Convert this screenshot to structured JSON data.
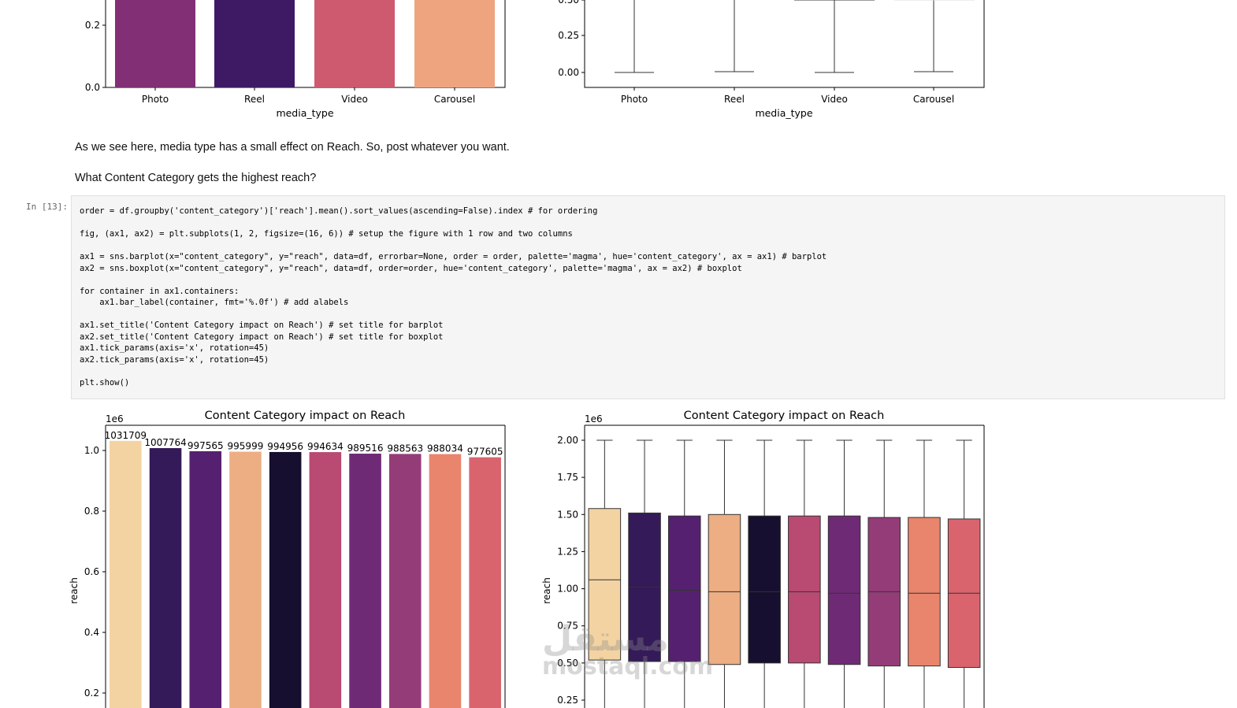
{
  "top_charts": {
    "bar": {
      "y_ticks": [
        "0.0",
        "0.2"
      ],
      "categories": [
        "Photo",
        "Reel",
        "Video",
        "Carousel"
      ],
      "colors": [
        "#822f75",
        "#3e1a65",
        "#cd5a6e",
        "#eda47f"
      ],
      "xlabel": "media_type"
    },
    "box": {
      "y_ticks": [
        "0.00",
        "0.25",
        "0.50"
      ],
      "categories": [
        "Photo",
        "Reel",
        "Video",
        "Carousel"
      ],
      "xlabel": "media_type"
    }
  },
  "markdown": {
    "line1": "As we see here, media type has a small effect on Reach. So, post whatever you want.",
    "line2": "What Content Category gets the highest reach?"
  },
  "cell": {
    "prompt": "In [13]:",
    "code": [
      "order = df.groupby('content_category')['reach'].mean().sort_values(ascending=False).index # for ordering",
      "",
      "fig, (ax1, ax2) = plt.subplots(1, 2, figsize=(16, 6)) # setup the figure with 1 row and two columns",
      "",
      "ax1 = sns.barplot(x=\"content_category\", y=\"reach\", data=df, errorbar=None, order = order, palette='magma', hue='content_category', ax = ax1) # barplot",
      "ax2 = sns.boxplot(x=\"content_category\", y=\"reach\", data=df, order=order, hue='content_category', palette='magma', ax = ax2) # boxplot",
      "",
      "for container in ax1.containers:",
      "    ax1.bar_label(container, fmt='%.0f') # add alabels",
      "",
      "ax1.set_title('Content Category impact on Reach') # set title for barplot",
      "ax2.set_title('Content Category impact on Reach') # set title for boxplot",
      "ax1.tick_params(axis='x', rotation=45)",
      "ax2.tick_params(axis='x', rotation=45)",
      "",
      "plt.show()"
    ]
  },
  "chart_data": [
    {
      "type": "bar",
      "title": "Content Category impact on Reach",
      "ylabel": "reach",
      "scale_label": "1e6",
      "values": [
        1031709,
        1007764,
        997565,
        995999,
        994956,
        994634,
        989516,
        988563,
        988034,
        977605
      ],
      "labels": [
        "1031709",
        "1007764",
        "997565",
        "995999",
        "994956",
        "994634",
        "989516",
        "988563",
        "988034",
        "977605"
      ],
      "colors": [
        "#f3d3a2",
        "#341a58",
        "#562070",
        "#edae83",
        "#160f30",
        "#b94a72",
        "#6f2a76",
        "#943c78",
        "#e8856c",
        "#d9646e"
      ],
      "y_ticks": [
        "0.2",
        "0.4",
        "0.6",
        "0.8",
        "1.0"
      ]
    },
    {
      "type": "box",
      "title": "Content Category impact on Reach",
      "ylabel": "reach",
      "scale_label": "1e6",
      "y_ticks": [
        "0.25",
        "0.50",
        "0.75",
        "1.00",
        "1.25",
        "1.50",
        "1.75",
        "2.00"
      ],
      "boxes": [
        {
          "q1": 0.52,
          "median": 1.06,
          "q3": 1.54,
          "whisker_hi": 2.0
        },
        {
          "q1": 0.51,
          "median": 1.01,
          "q3": 1.51,
          "whisker_hi": 2.0
        },
        {
          "q1": 0.51,
          "median": 0.99,
          "q3": 1.49,
          "whisker_hi": 2.0
        },
        {
          "q1": 0.49,
          "median": 0.98,
          "q3": 1.5,
          "whisker_hi": 2.0
        },
        {
          "q1": 0.5,
          "median": 0.98,
          "q3": 1.49,
          "whisker_hi": 2.0
        },
        {
          "q1": 0.5,
          "median": 0.98,
          "q3": 1.49,
          "whisker_hi": 2.0
        },
        {
          "q1": 0.49,
          "median": 0.97,
          "q3": 1.49,
          "whisker_hi": 2.0
        },
        {
          "q1": 0.48,
          "median": 0.98,
          "q3": 1.48,
          "whisker_hi": 2.0
        },
        {
          "q1": 0.48,
          "median": 0.97,
          "q3": 1.48,
          "whisker_hi": 2.0
        },
        {
          "q1": 0.47,
          "median": 0.97,
          "q3": 1.47,
          "whisker_hi": 2.0
        }
      ]
    }
  ],
  "watermark": {
    "line1": "مستقل",
    "line2": "mostaql.com"
  }
}
